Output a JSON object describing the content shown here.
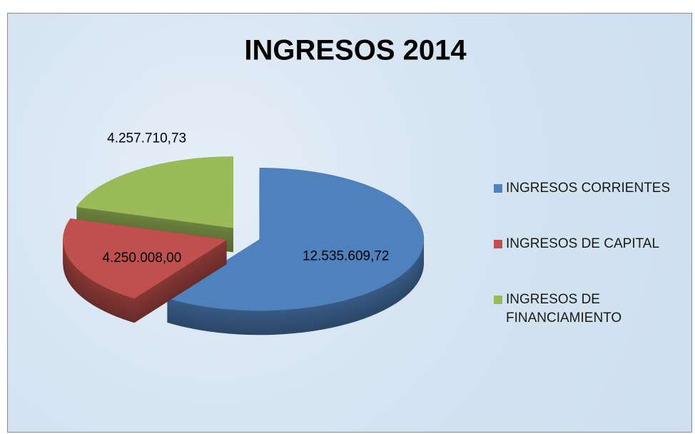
{
  "chart_data": {
    "type": "pie",
    "title": "INGRESOS 2014",
    "categories": [
      "INGRESOS CORRIENTES",
      "INGRESOS DE CAPITAL",
      "INGRESOS DE FINANCIAMIENTO"
    ],
    "values": [
      12535609.72,
      4250008.0,
      4257710.73
    ],
    "value_labels": [
      "12.535.609,72",
      "4.250.008,00",
      "4.257.710,73"
    ],
    "colors": [
      "#4f81bd",
      "#c0504d",
      "#9bbb59"
    ],
    "legend": "right"
  }
}
